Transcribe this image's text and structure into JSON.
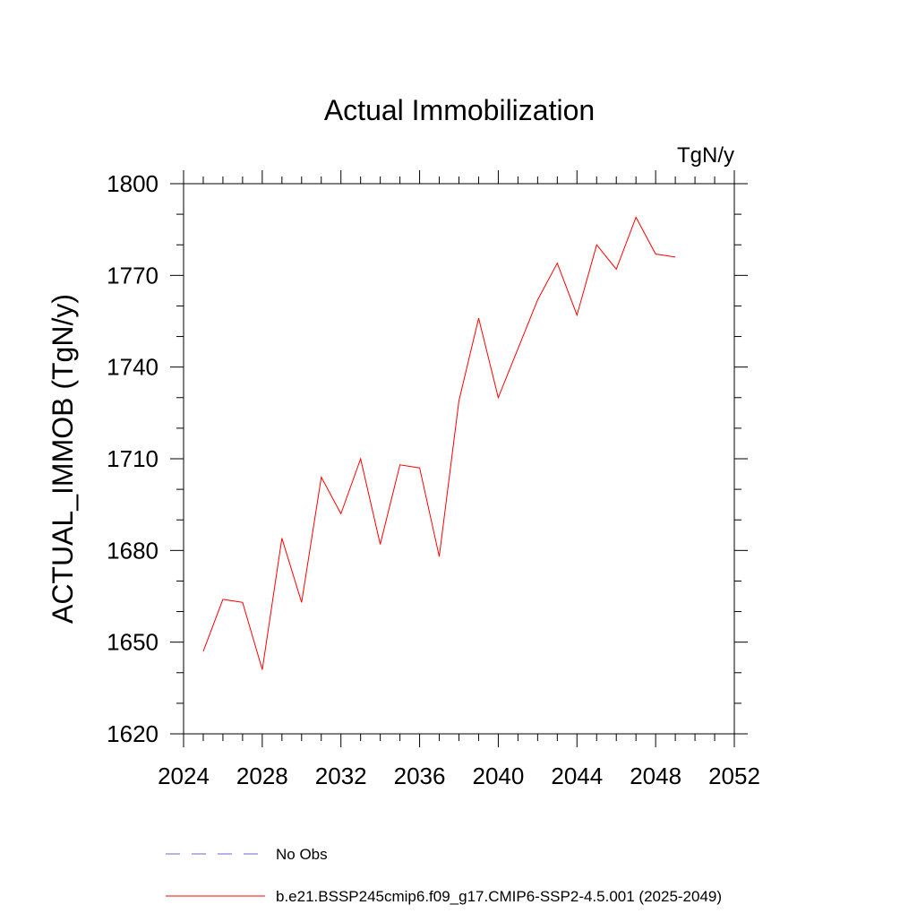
{
  "chart_data": {
    "type": "line",
    "title": "Actual Immobilization",
    "units_label": "TgN/y",
    "ylabel": "ACTUAL_IMMOB  (TgN/y)",
    "xlabel": "",
    "xlim": [
      2024,
      2052
    ],
    "ylim": [
      1620,
      1800
    ],
    "xticks": [
      2024,
      2028,
      2032,
      2036,
      2040,
      2044,
      2048,
      2052
    ],
    "yticks": [
      1620,
      1650,
      1680,
      1710,
      1740,
      1770,
      1800
    ],
    "grid": false,
    "series": [
      {
        "name": "b.e21.BSSP245cmip6.f09_g17.CMIP6-SSP2-4.5.001 (2025-2049)",
        "color": "#ff0000",
        "x": [
          2025,
          2026,
          2027,
          2028,
          2029,
          2030,
          2031,
          2032,
          2033,
          2034,
          2035,
          2036,
          2037,
          2038,
          2039,
          2040,
          2041,
          2042,
          2043,
          2044,
          2045,
          2046,
          2047,
          2048,
          2049
        ],
        "values": [
          1647,
          1664,
          1663,
          1641,
          1684,
          1663,
          1704,
          1692,
          1710,
          1682,
          1708,
          1707,
          1678,
          1729,
          1756,
          1730,
          1746,
          1762,
          1774,
          1757,
          1780,
          1772,
          1789,
          1777,
          1776
        ]
      }
    ],
    "legend": [
      {
        "label": "No Obs",
        "color": "#6a6ad0",
        "style": "dashed"
      },
      {
        "label": "b.e21.BSSP245cmip6.f09_g17.CMIP6-SSP2-4.5.001 (2025-2049)",
        "color": "#ff0000",
        "style": "solid"
      }
    ],
    "legend_position": "bottom"
  }
}
